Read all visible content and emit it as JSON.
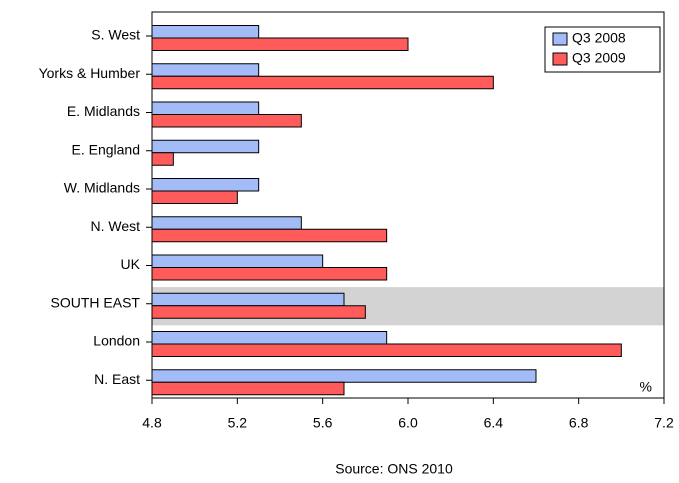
{
  "chart_data": {
    "type": "hbar",
    "categories": [
      "S. West",
      "Yorks & Humber",
      "E. Midlands",
      "E. England",
      "W. Midlands",
      "N. West",
      "UK",
      "SOUTH EAST",
      "London",
      "N. East"
    ],
    "series": [
      {
        "name": "Q3 2008",
        "color": "#a3bcf7",
        "values": [
          5.3,
          5.3,
          5.3,
          5.3,
          5.3,
          5.5,
          5.6,
          5.7,
          5.9,
          6.6
        ]
      },
      {
        "name": "Q3 2009",
        "color": "#ff5b5b",
        "values": [
          6.0,
          6.4,
          5.5,
          4.9,
          5.2,
          5.9,
          5.9,
          5.8,
          7.0,
          5.7
        ]
      }
    ],
    "xlim": [
      4.8,
      7.2
    ],
    "xticks": [
      4.8,
      5.2,
      5.6,
      {
        "value": 6,
        "label": "6.0"
      },
      6.4,
      6.8,
      7.2
    ],
    "x_unit": "%",
    "highlight_index": 7,
    "legend": "top-right",
    "source": "Source: ONS 2010"
  }
}
